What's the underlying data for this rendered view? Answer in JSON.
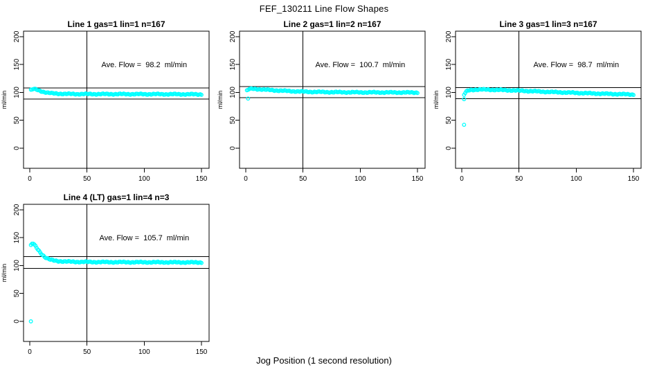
{
  "page": {
    "title": "FEF_130211  Line Flow Shapes",
    "xlabel": "Jog Position (1 second resolution)",
    "background": "#ffffff",
    "point_color": "#00ffff",
    "axis_color": "#000000"
  },
  "chart_data": [
    {
      "type": "scatter",
      "title": "Line 1 gas=1 lin=1 n=167",
      "annotation": "Ave. Flow =  98.2  ml/min",
      "ave_flow_ml_min": 98.2,
      "ylabel": "ml/min",
      "x_ticks": [
        0,
        50,
        100,
        150
      ],
      "y_ticks": [
        0,
        50,
        100,
        150,
        200
      ],
      "xlim": [
        -6,
        157
      ],
      "ylim": [
        -35,
        211
      ],
      "grid": false,
      "vline_x": 50,
      "hlines": [
        108.0,
        88.4
      ],
      "series_anchor_points": [
        [
          1,
          104
        ],
        [
          3,
          106
        ],
        [
          5,
          105.5
        ],
        [
          8,
          103.5
        ],
        [
          12,
          101
        ],
        [
          16,
          99.3
        ],
        [
          20,
          98.3
        ],
        [
          25,
          97.8
        ],
        [
          30,
          97.4
        ],
        [
          40,
          97.1
        ],
        [
          60,
          97
        ],
        [
          80,
          97
        ],
        [
          100,
          96.9
        ],
        [
          120,
          96.8
        ],
        [
          135,
          96.7
        ],
        [
          150,
          96.5
        ]
      ],
      "outlier_points": []
    },
    {
      "type": "scatter",
      "title": "Line 2 gas=1 lin=2 n=167",
      "annotation": "Ave. Flow =  100.7  ml/min",
      "ave_flow_ml_min": 100.7,
      "ylabel": "ml/min",
      "x_ticks": [
        0,
        50,
        100,
        150
      ],
      "y_ticks": [
        0,
        50,
        100,
        150,
        200
      ],
      "xlim": [
        -6,
        157
      ],
      "ylim": [
        -35,
        211
      ],
      "grid": false,
      "vline_x": 50,
      "hlines": [
        110.8,
        90.6
      ],
      "series_anchor_points": [
        [
          1,
          103
        ],
        [
          3,
          106
        ],
        [
          6,
          106.5
        ],
        [
          10,
          106
        ],
        [
          15,
          105.3
        ],
        [
          20,
          104.5
        ],
        [
          25,
          103.8
        ],
        [
          30,
          103.2
        ],
        [
          40,
          102.2
        ],
        [
          50,
          101.4
        ],
        [
          60,
          100.9
        ],
        [
          80,
          100.4
        ],
        [
          100,
          100.1
        ],
        [
          120,
          100
        ],
        [
          150,
          99.8
        ]
      ],
      "outlier_points": [
        [
          2,
          89
        ]
      ]
    },
    {
      "type": "scatter",
      "title": "Line 3 gas=1 lin=3 n=167",
      "annotation": "Ave. Flow =  98.7  ml/min",
      "ave_flow_ml_min": 98.7,
      "ylabel": "ml/min",
      "x_ticks": [
        0,
        50,
        100,
        150
      ],
      "y_ticks": [
        0,
        50,
        100,
        150,
        200
      ],
      "xlim": [
        -6,
        157
      ],
      "ylim": [
        -35,
        211
      ],
      "grid": false,
      "vline_x": 50,
      "hlines": [
        108.6,
        88.8
      ],
      "series_anchor_points": [
        [
          2,
          95.5
        ],
        [
          3,
          99
        ],
        [
          4,
          101.5
        ],
        [
          6,
          103.5
        ],
        [
          8,
          104.5
        ],
        [
          12,
          105
        ],
        [
          16,
          105.2
        ],
        [
          20,
          105.1
        ],
        [
          25,
          104.9
        ],
        [
          30,
          104.6
        ],
        [
          40,
          104
        ],
        [
          50,
          103.2
        ],
        [
          60,
          102.3
        ],
        [
          70,
          101.4
        ],
        [
          80,
          100.6
        ],
        [
          90,
          99.9
        ],
        [
          100,
          99.2
        ],
        [
          110,
          98.5
        ],
        [
          120,
          97.9
        ],
        [
          130,
          97.3
        ],
        [
          140,
          96.8
        ],
        [
          150,
          96.3
        ]
      ],
      "outlier_points": [
        [
          2,
          88
        ],
        [
          2,
          42
        ]
      ]
    },
    {
      "type": "scatter",
      "title": "Line 4 (LT) gas=1 lin=4 n=3",
      "annotation": "Ave. Flow =  105.7  ml/min",
      "ave_flow_ml_min": 105.7,
      "ylabel": "ml/min",
      "x_ticks": [
        0,
        50,
        100,
        150
      ],
      "y_ticks": [
        0,
        50,
        100,
        150,
        200
      ],
      "xlim": [
        -6,
        157
      ],
      "ylim": [
        -35,
        211
      ],
      "grid": false,
      "vline_x": 50,
      "hlines": [
        116.3,
        95.1
      ],
      "series_anchor_points": [
        [
          1,
          136
        ],
        [
          2,
          139
        ],
        [
          3,
          139.5
        ],
        [
          5,
          134.5
        ],
        [
          7,
          129
        ],
        [
          9,
          124
        ],
        [
          11,
          119.5
        ],
        [
          13,
          115.8
        ],
        [
          15,
          113
        ],
        [
          18,
          110.5
        ],
        [
          21,
          109
        ],
        [
          25,
          108
        ],
        [
          30,
          107.3
        ],
        [
          40,
          106.7
        ],
        [
          60,
          106.3
        ],
        [
          80,
          106.1
        ],
        [
          100,
          106
        ],
        [
          120,
          105.9
        ],
        [
          150,
          105.6
        ]
      ],
      "outlier_points": [
        [
          1,
          0
        ]
      ]
    }
  ]
}
